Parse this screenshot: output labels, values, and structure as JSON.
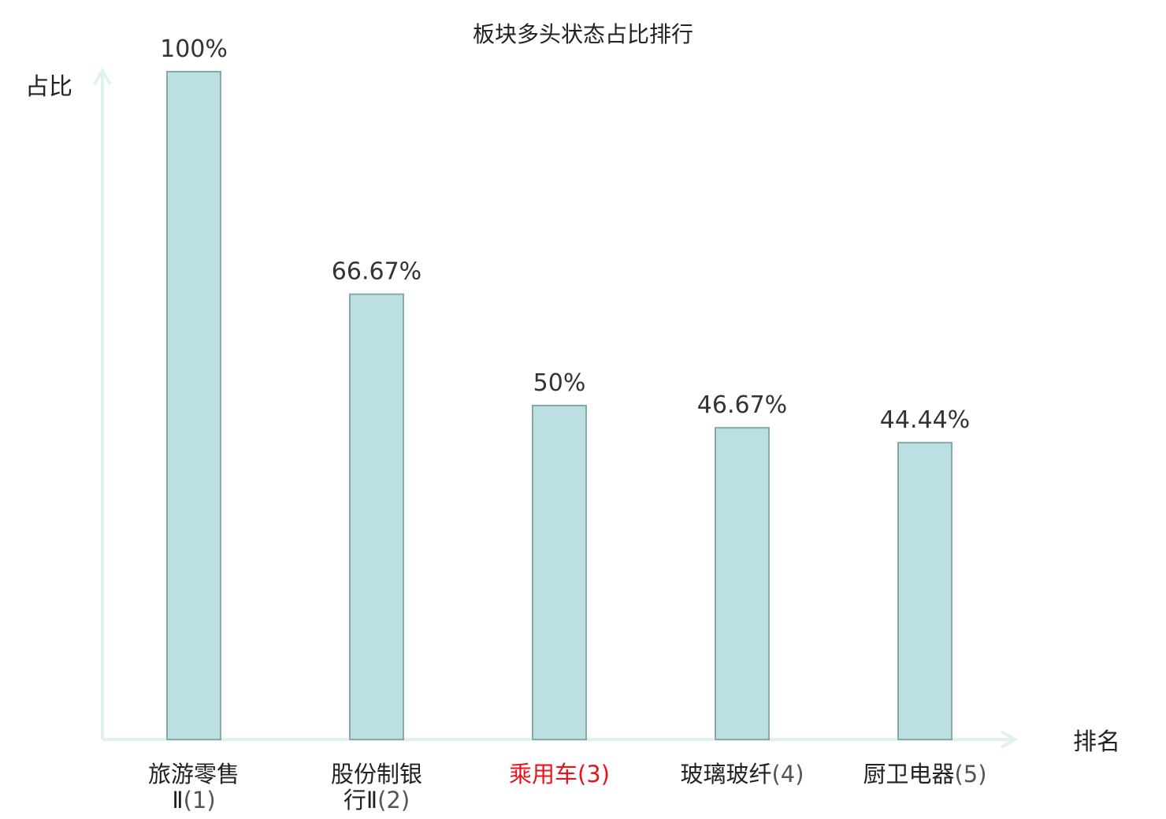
{
  "chart_data": {
    "type": "bar",
    "title": "板块多头状态占比排行",
    "ylabel": "占比",
    "xlabel": "排名",
    "ylim": [
      0,
      100
    ],
    "grid": false,
    "value_unit": "%",
    "categories": [
      {
        "lines": [
          "旅游零售",
          "Ⅱ(1)"
        ],
        "highlight": false
      },
      {
        "lines": [
          "股份制银",
          "行Ⅱ(2)"
        ],
        "highlight": false
      },
      {
        "lines": [
          "乘用车(3)"
        ],
        "highlight": true
      },
      {
        "lines": [
          "玻璃玻纤(4)"
        ],
        "highlight": false
      },
      {
        "lines": [
          "厨卫电器(5)"
        ],
        "highlight": false
      }
    ],
    "values": [
      100,
      66.67,
      50,
      46.67,
      44.44
    ],
    "value_labels": [
      "100%",
      "66.67%",
      "50%",
      "46.67%",
      "44.44%"
    ],
    "colors": {
      "bar_fill": "#bce0e1",
      "bar_stroke": "#86a8aa",
      "axis": "#dff2ef",
      "highlight_text": "#e8141c"
    }
  }
}
